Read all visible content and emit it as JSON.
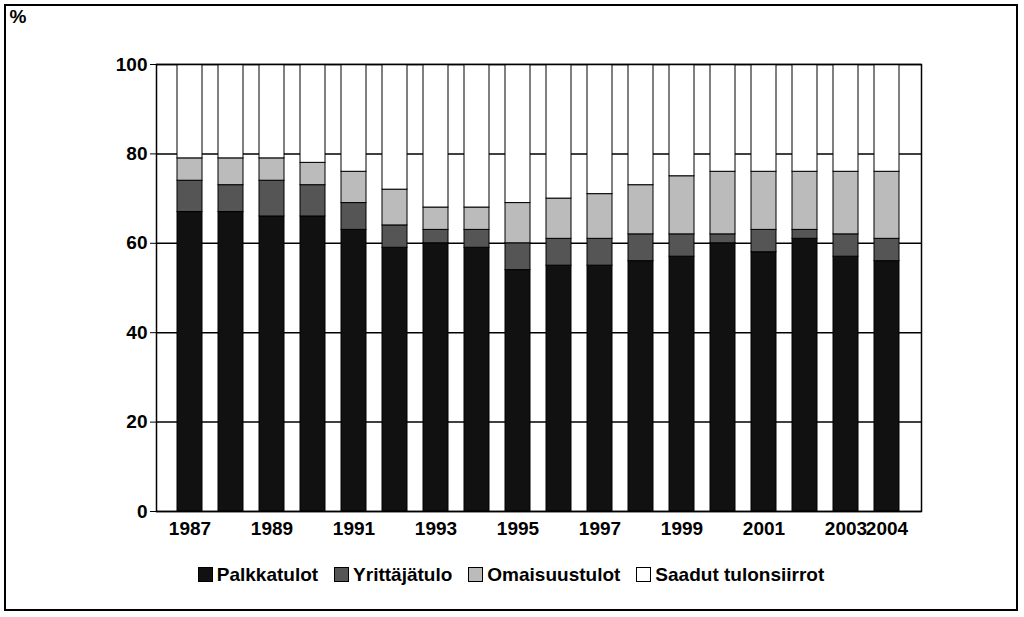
{
  "chart_data": {
    "type": "bar",
    "stacked": true,
    "categories": [
      "1987",
      null,
      "1989",
      null,
      "1991",
      null,
      "1993",
      null,
      "1995",
      null,
      "1997",
      null,
      "1999",
      null,
      "2001",
      null,
      "2003",
      "2004"
    ],
    "series": [
      {
        "name": "Palkkatulot",
        "color": "#111111",
        "values": [
          67,
          67,
          66,
          66,
          63,
          59,
          60,
          59,
          54,
          55,
          55,
          56,
          57,
          60,
          58,
          61,
          57,
          56
        ]
      },
      {
        "name": "Yrittäjätulo",
        "color": "#555555",
        "values": [
          7,
          6,
          8,
          7,
          6,
          5,
          3,
          4,
          6,
          6,
          6,
          6,
          5,
          2,
          5,
          2,
          5,
          5
        ]
      },
      {
        "name": "Omaisuustulot",
        "color": "#bbbbbb",
        "values": [
          5,
          6,
          5,
          5,
          7,
          8,
          5,
          5,
          9,
          9,
          10,
          11,
          13,
          14,
          13,
          13,
          14,
          15
        ]
      },
      {
        "name": "Saadut tulonsiirrot",
        "color": "#ffffff",
        "values": [
          21,
          21,
          21,
          22,
          24,
          28,
          32,
          32,
          31,
          30,
          29,
          27,
          25,
          24,
          24,
          24,
          24,
          24
        ]
      }
    ],
    "y_label": "%",
    "ylim": [
      0,
      100
    ],
    "yticks": [
      0,
      20,
      40,
      60,
      80,
      100
    ],
    "grid": true,
    "legend": "bottom"
  }
}
